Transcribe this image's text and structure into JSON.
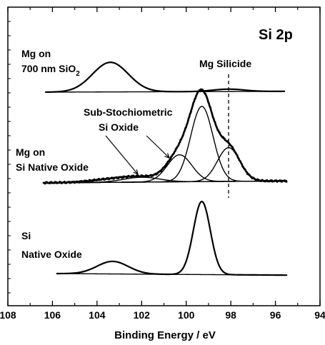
{
  "chart_data": {
    "type": "line",
    "title": "Si 2p",
    "xlabel": "Binding Energy / eV",
    "ylabel": "",
    "xlim": [
      108,
      94
    ],
    "x_reversed": true,
    "xticks": [
      "108",
      "106",
      "104",
      "102",
      "100",
      "98",
      "96",
      "94"
    ],
    "xtick_values": [
      108,
      106,
      104,
      102,
      100,
      98,
      96,
      94
    ],
    "yticks_shown": false,
    "grid": false,
    "annotations": {
      "sub_stoichiometric_line1": "Sub-Stochiometric",
      "sub_stoichiometric_line2": "Si Oxide",
      "silicide": "Mg Silicide",
      "silicide_marker_x": 98.1
    },
    "spectra": [
      {
        "label_line1": "Mg on",
        "label_line2": "700 nm SiO",
        "label_subscript": "2",
        "x_range": [
          106.3,
          95.6
        ],
        "baseline": [
          0.64,
          0.66
        ],
        "envelope_peaks": [
          {
            "center": 103.4,
            "height": 0.74,
            "width": 0.8
          },
          {
            "center": 98.1,
            "height": 0.06,
            "width": 0.7
          }
        ],
        "components": []
      },
      {
        "label_line1": "Mg on",
        "label_line2": "Si Native Oxide",
        "label_subscript": "",
        "x_range": [
          106.4,
          95.5
        ],
        "baseline": [
          0.07,
          0.09
        ],
        "envelope_peaks": [
          {
            "center": 103.4,
            "height": 0.03,
            "width": 0.9
          },
          {
            "center": 102.0,
            "height": 0.05,
            "width": 0.8
          },
          {
            "center": 100.3,
            "height": 0.28,
            "width": 0.55
          },
          {
            "center": 99.3,
            "height": 0.88,
            "width": 0.5
          },
          {
            "center": 98.1,
            "height": 0.35,
            "width": 0.5
          }
        ],
        "components": [
          {
            "center": 102.0,
            "height": 0.05,
            "width": 0.8
          },
          {
            "center": 100.3,
            "height": 0.28,
            "width": 0.55
          },
          {
            "center": 99.3,
            "height": 0.78,
            "width": 0.5
          },
          {
            "center": 98.1,
            "height": 0.35,
            "width": 0.5
          }
        ]
      },
      {
        "label_line1": "Si",
        "label_line2": "Native Oxide",
        "label_subscript": "",
        "x_range": [
          105.8,
          95.5
        ],
        "baseline": [
          0.07,
          0.05
        ],
        "envelope_peaks": [
          {
            "center": 103.3,
            "height": 0.16,
            "width": 0.7
          },
          {
            "center": 99.3,
            "height": 0.93,
            "width": 0.38
          }
        ],
        "components": []
      }
    ]
  }
}
